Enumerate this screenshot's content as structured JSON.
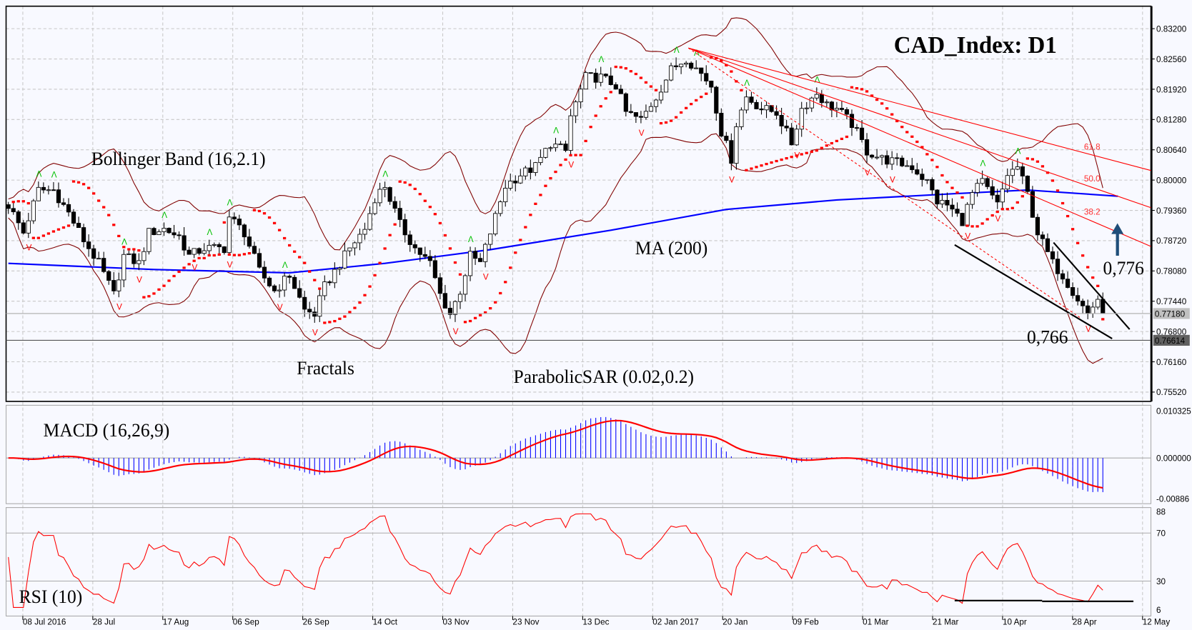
{
  "chart_data": {
    "type": "candlestick",
    "title": "CAD_Index: D1",
    "instrument": "CAD_Index",
    "timeframe": "D1",
    "x_ticks": [
      "08 Jul 2016",
      "28 Jul",
      "17 Aug",
      "06 Sep",
      "26 Sep",
      "14 Oct",
      "03 Nov",
      "23 Nov",
      "13 Dec",
      "02 Jan 2017",
      "20 Jan",
      "09 Feb",
      "01 Mar",
      "21 Mar",
      "10 Apr",
      "28 Apr",
      "12 May"
    ],
    "price_axis": {
      "ylim": [
        0.7525,
        0.8345
      ],
      "ticks": [
        "0.83200",
        "0.82560",
        "0.81920",
        "0.81280",
        "0.80640",
        "0.80000",
        "0.79360",
        "0.78720",
        "0.78080",
        "0.77440",
        "0.76800",
        "0.76160",
        "0.75520"
      ],
      "current_price": "0.77180",
      "support_level": "0.76614"
    },
    "close_keypoints_by_bar": [
      [
        0,
        0.7947
      ],
      [
        3,
        0.7889
      ],
      [
        6,
        0.7979
      ],
      [
        9,
        0.7979
      ],
      [
        12,
        0.793
      ],
      [
        15,
        0.7873
      ],
      [
        18,
        0.7824
      ],
      [
        21,
        0.7758
      ],
      [
        23,
        0.784
      ],
      [
        26,
        0.7824
      ],
      [
        28,
        0.7889
      ],
      [
        31,
        0.7897
      ],
      [
        34,
        0.7881
      ],
      [
        36,
        0.784
      ],
      [
        39,
        0.7856
      ],
      [
        43,
        0.7856
      ],
      [
        44,
        0.7922
      ],
      [
        47,
        0.7889
      ],
      [
        50,
        0.7807
      ],
      [
        53,
        0.7766
      ],
      [
        56,
        0.7799
      ],
      [
        59,
        0.7725
      ],
      [
        61,
        0.7717
      ],
      [
        63,
        0.7775
      ],
      [
        65,
        0.7807
      ],
      [
        68,
        0.7856
      ],
      [
        71,
        0.7897
      ],
      [
        73,
        0.7963
      ],
      [
        75,
        0.7988
      ],
      [
        78,
        0.7906
      ],
      [
        81,
        0.7856
      ],
      [
        84,
        0.7824
      ],
      [
        86,
        0.7758
      ],
      [
        88,
        0.7717
      ],
      [
        90,
        0.7766
      ],
      [
        92,
        0.784
      ],
      [
        94,
        0.7824
      ],
      [
        97,
        0.7922
      ],
      [
        99,
        0.7988
      ],
      [
        102,
        0.8012
      ],
      [
        105,
        0.8028
      ],
      [
        108,
        0.8078
      ],
      [
        111,
        0.8061
      ],
      [
        112,
        0.8135
      ],
      [
        115,
        0.8217
      ],
      [
        118,
        0.8217
      ],
      [
        121,
        0.82
      ],
      [
        123,
        0.8143
      ],
      [
        126,
        0.8127
      ],
      [
        129,
        0.8176
      ],
      [
        132,
        0.8233
      ],
      [
        135,
        0.8258
      ],
      [
        138,
        0.8225
      ],
      [
        140,
        0.82
      ],
      [
        142,
        0.8102
      ],
      [
        144,
        0.8045
      ],
      [
        145,
        0.8119
      ],
      [
        147,
        0.8176
      ],
      [
        150,
        0.8151
      ],
      [
        153,
        0.8143
      ],
      [
        156,
        0.8078
      ],
      [
        158,
        0.8151
      ],
      [
        161,
        0.8184
      ],
      [
        163,
        0.8159
      ],
      [
        165,
        0.8151
      ],
      [
        168,
        0.8119
      ],
      [
        171,
        0.8061
      ],
      [
        174,
        0.8045
      ],
      [
        177,
        0.8037
      ],
      [
        180,
        0.8028
      ],
      [
        183,
        0.7996
      ],
      [
        185,
        0.7955
      ],
      [
        187,
        0.7947
      ],
      [
        190,
        0.7914
      ],
      [
        192,
        0.7971
      ],
      [
        194,
        0.7996
      ],
      [
        197,
        0.7947
      ],
      [
        199,
        0.8012
      ],
      [
        201,
        0.8028
      ],
      [
        203,
        0.7971
      ],
      [
        205,
        0.7889
      ],
      [
        208,
        0.7824
      ],
      [
        210,
        0.7799
      ],
      [
        212,
        0.7766
      ],
      [
        215,
        0.7717
      ],
      [
        217,
        0.775
      ],
      [
        218,
        0.7718
      ]
    ],
    "ma200_keypoints_by_bar": [
      [
        0,
        0.7824
      ],
      [
        29,
        0.7811
      ],
      [
        56,
        0.7804
      ],
      [
        75,
        0.7824
      ],
      [
        96,
        0.7853
      ],
      [
        120,
        0.7894
      ],
      [
        143,
        0.7938
      ],
      [
        165,
        0.7958
      ],
      [
        188,
        0.7971
      ],
      [
        203,
        0.7979
      ],
      [
        221,
        0.7966
      ]
    ],
    "fibonacci_levels": [
      "61.8",
      "50.0",
      "38.2"
    ],
    "annotations": {
      "bollinger": "Bollinger Band (16,2.1)",
      "ma": "MA (200)",
      "fractals": "Fractals",
      "sar": "ParabolicSAR (0.02,0.2)",
      "target": "0,776",
      "support": "0,766"
    },
    "macd": {
      "label": "MACD (16,26,9)",
      "ticks": [
        "0.010325",
        "0.000000",
        "-0.00886"
      ],
      "ylim": [
        -0.00886,
        0.010325
      ]
    },
    "rsi": {
      "label": "RSI (10)",
      "ticks": [
        "88",
        "70",
        "30",
        "6"
      ],
      "ylim": [
        6,
        88
      ]
    },
    "colors": {
      "bull": "#ffffff",
      "bear": "#000000",
      "ma": "#0000ff",
      "bollinger": "#800000",
      "sar": "#ff0000",
      "fractal_up": "#00c000",
      "fractal_down": "#ff0000",
      "fib": "#ff0000",
      "macd_hist": "#0000ff",
      "macd_signal": "#ff0000",
      "rsi": "#ff0000",
      "arrow": "#1f4e79",
      "background": "#f8f9ff"
    }
  }
}
